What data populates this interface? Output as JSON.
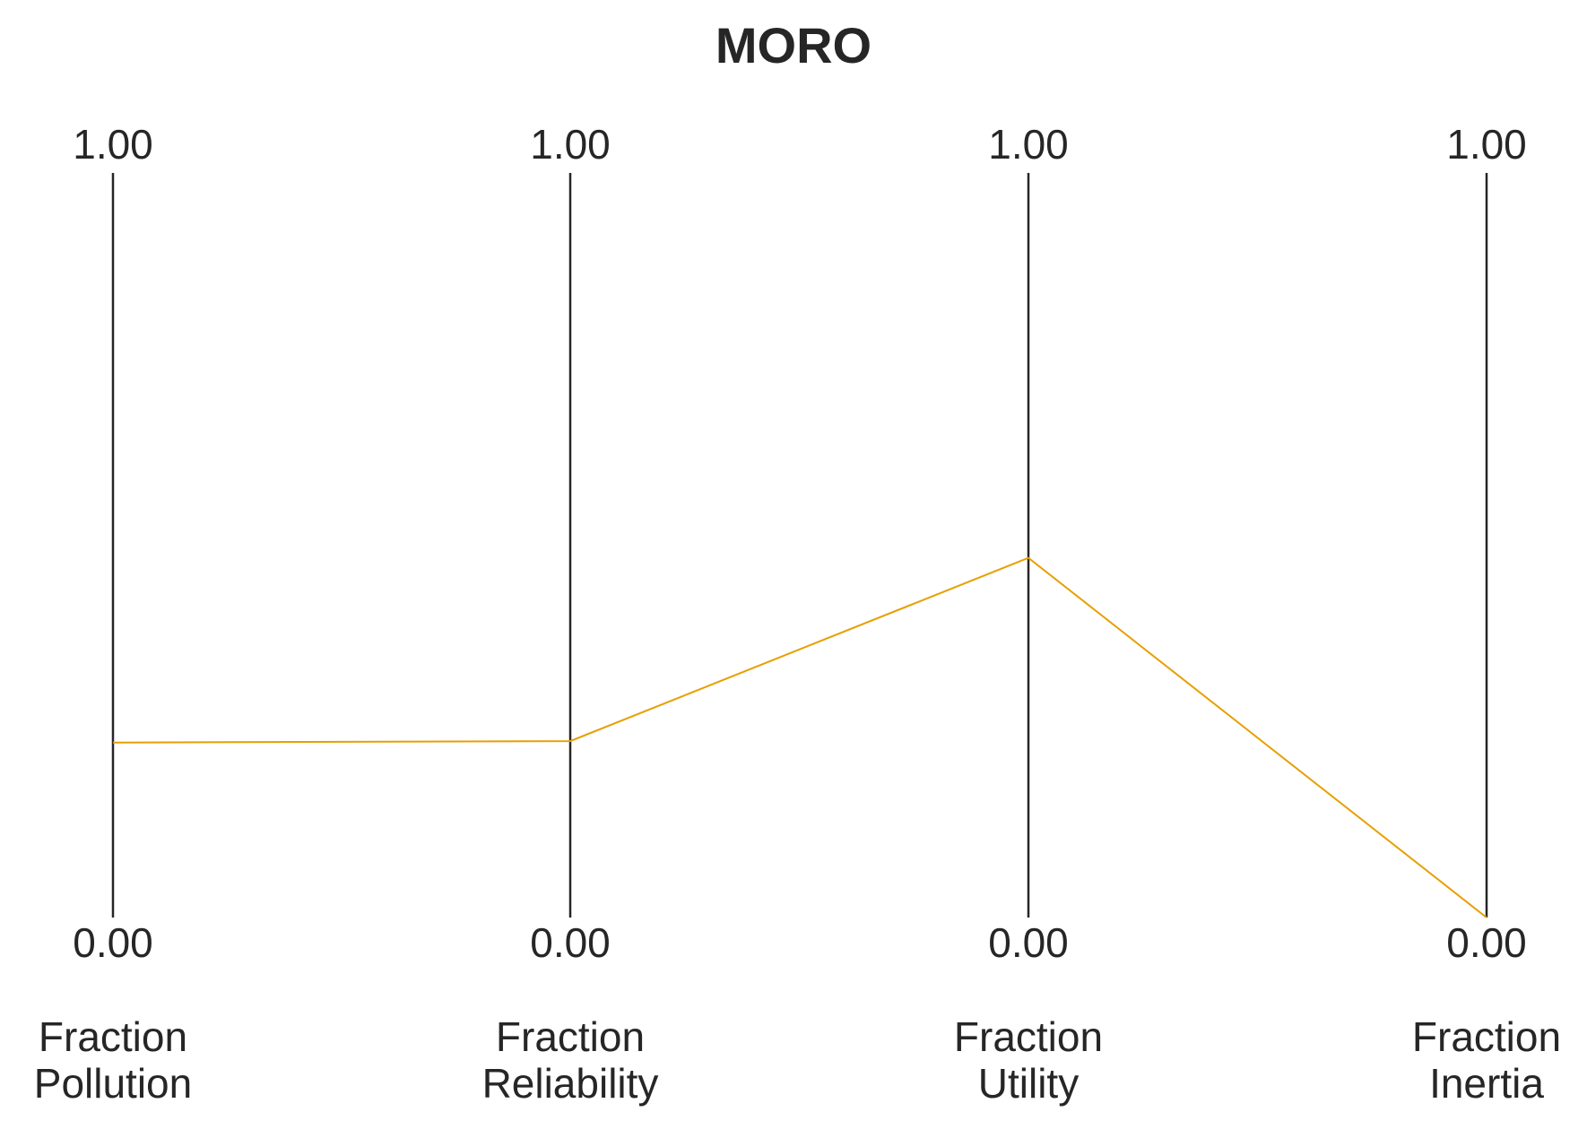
{
  "chart_data": {
    "type": "parallel-coordinates",
    "title": "MORO",
    "axes": [
      {
        "label_lines": [
          "Fraction",
          "Pollution"
        ],
        "min_label": "0.00",
        "max_label": "1.00",
        "range": [
          0,
          1
        ]
      },
      {
        "label_lines": [
          "Fraction",
          "Reliability"
        ],
        "min_label": "0.00",
        "max_label": "1.00",
        "range": [
          0,
          1
        ]
      },
      {
        "label_lines": [
          "Fraction",
          "Utility"
        ],
        "min_label": "0.00",
        "max_label": "1.00",
        "range": [
          0,
          1
        ]
      },
      {
        "label_lines": [
          "Fraction",
          "Inertia"
        ],
        "min_label": "0.00",
        "max_label": "1.00",
        "range": [
          0,
          1
        ]
      }
    ],
    "series": [
      {
        "values": [
          0.235,
          0.237,
          0.483,
          0.0
        ],
        "color": "#E69F00"
      }
    ],
    "axis_color": "#262626",
    "grid": false
  }
}
